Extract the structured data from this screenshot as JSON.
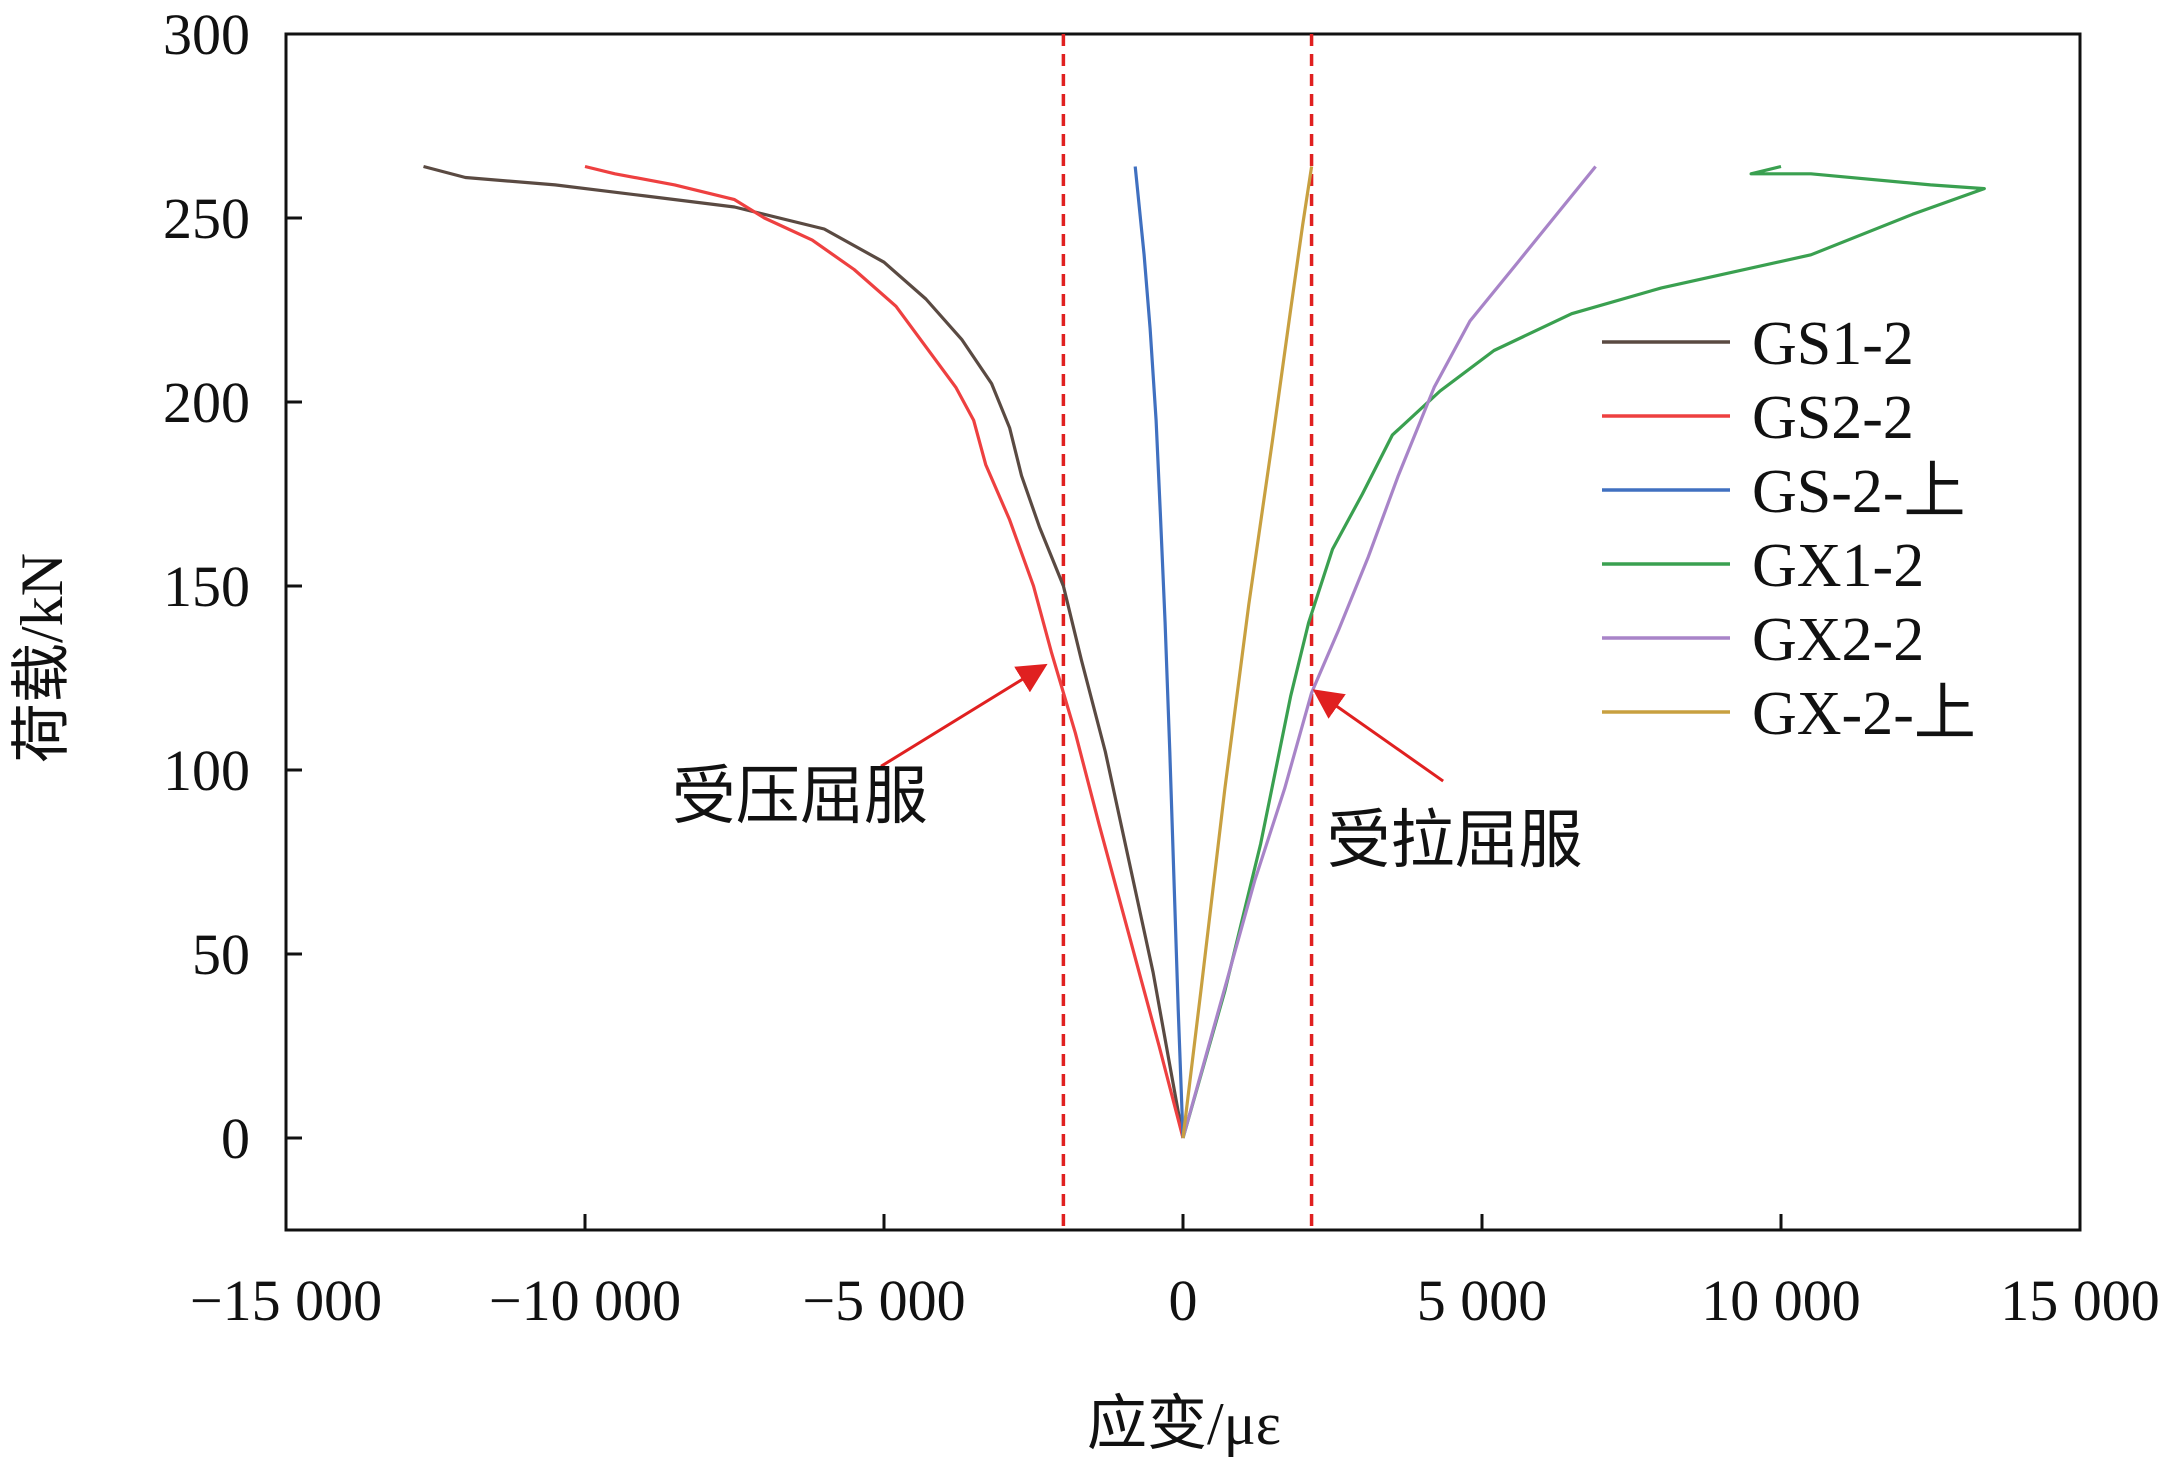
{
  "chart_data": {
    "type": "line",
    "xlabel": "应变/με",
    "ylabel": "荷载/kN",
    "xlim": [
      -15000,
      15000
    ],
    "ylim": [
      -25,
      300
    ],
    "x_ticks": [
      -15000,
      -10000,
      -5000,
      0,
      5000,
      10000,
      15000
    ],
    "x_tick_labels": [
      "−15 000",
      "−10 000",
      "−5 000",
      "0",
      "5 000",
      "10 000",
      "15 000"
    ],
    "y_ticks": [
      0,
      50,
      100,
      150,
      200,
      250,
      300
    ],
    "y_tick_labels": [
      "0",
      "50",
      "100",
      "150",
      "200",
      "250",
      "300"
    ],
    "grid": false,
    "legend_position": "right",
    "reference_lines": [
      {
        "x": -2000,
        "color": "#e02020",
        "style": "dashed"
      },
      {
        "x": 2150,
        "color": "#e02020",
        "style": "dashed"
      }
    ],
    "annotations": [
      {
        "text": "受压屈服",
        "x": -8550,
        "y": 87,
        "arrow_from": [
          -5050,
          101
        ],
        "arrow_to": [
          -2350,
          128
        ]
      },
      {
        "text": "受拉屈服",
        "x": 2400,
        "y": 75,
        "arrow_from": [
          4350,
          97
        ],
        "arrow_to": [
          2250,
          121
        ]
      }
    ],
    "series": [
      {
        "name": "GS1-2",
        "color": "#5a4a42",
        "points": [
          [
            -12700,
            264
          ],
          [
            -12000,
            261
          ],
          [
            -10500,
            259
          ],
          [
            -9000,
            256
          ],
          [
            -7500,
            253
          ],
          [
            -6000,
            247
          ],
          [
            -5000,
            238
          ],
          [
            -4300,
            228
          ],
          [
            -3700,
            217
          ],
          [
            -3200,
            205
          ],
          [
            -2900,
            193
          ],
          [
            -2700,
            180
          ],
          [
            -2400,
            166
          ],
          [
            -2000,
            150
          ],
          [
            -1700,
            130
          ],
          [
            -1300,
            105
          ],
          [
            -900,
            75
          ],
          [
            -500,
            45
          ],
          [
            -200,
            18
          ],
          [
            0,
            0
          ]
        ]
      },
      {
        "name": "GS2-2",
        "color": "#ee4040",
        "points": [
          [
            -10000,
            264
          ],
          [
            -9500,
            262
          ],
          [
            -8500,
            259
          ],
          [
            -7500,
            255
          ],
          [
            -7000,
            250
          ],
          [
            -6200,
            244
          ],
          [
            -5500,
            236
          ],
          [
            -4800,
            226
          ],
          [
            -4300,
            215
          ],
          [
            -3800,
            204
          ],
          [
            -3500,
            195
          ],
          [
            -3300,
            183
          ],
          [
            -2900,
            168
          ],
          [
            -2500,
            150
          ],
          [
            -2200,
            132
          ],
          [
            -1800,
            110
          ],
          [
            -1400,
            85
          ],
          [
            -900,
            55
          ],
          [
            -400,
            25
          ],
          [
            0,
            0
          ]
        ]
      },
      {
        "name": "GS-2-上",
        "color": "#4070c0",
        "points": [
          [
            -800,
            264
          ],
          [
            -650,
            240
          ],
          [
            -550,
            220
          ],
          [
            -450,
            195
          ],
          [
            -380,
            170
          ],
          [
            -300,
            140
          ],
          [
            -220,
            105
          ],
          [
            -150,
            70
          ],
          [
            -80,
            35
          ],
          [
            0,
            0
          ]
        ]
      },
      {
        "name": "GX1-2",
        "color": "#3aa050",
        "points": [
          [
            0,
            0
          ],
          [
            700,
            40
          ],
          [
            1300,
            80
          ],
          [
            1800,
            120
          ],
          [
            2100,
            140
          ],
          [
            2500,
            160
          ],
          [
            3000,
            175
          ],
          [
            3500,
            191
          ],
          [
            4300,
            203
          ],
          [
            5200,
            214
          ],
          [
            6500,
            224
          ],
          [
            8000,
            231
          ],
          [
            10500,
            240
          ],
          [
            12200,
            251
          ],
          [
            13400,
            258
          ],
          [
            12500,
            259
          ],
          [
            10500,
            262
          ],
          [
            9500,
            262
          ],
          [
            10000,
            264
          ]
        ]
      },
      {
        "name": "GX2-2",
        "color": "#a884c8",
        "points": [
          [
            0,
            0
          ],
          [
            600,
            35
          ],
          [
            1200,
            70
          ],
          [
            1700,
            95
          ],
          [
            2150,
            121
          ],
          [
            2600,
            138
          ],
          [
            3100,
            158
          ],
          [
            3600,
            180
          ],
          [
            4200,
            204
          ],
          [
            4800,
            222
          ],
          [
            5600,
            238
          ],
          [
            6300,
            252
          ],
          [
            6900,
            264
          ]
        ]
      },
      {
        "name": "GX-2-上",
        "color": "#c8a040",
        "points": [
          [
            0,
            0
          ],
          [
            300,
            40
          ],
          [
            700,
            95
          ],
          [
            1100,
            145
          ],
          [
            1500,
            190
          ],
          [
            1800,
            225
          ],
          [
            2000,
            248
          ],
          [
            2150,
            264
          ]
        ]
      }
    ]
  }
}
